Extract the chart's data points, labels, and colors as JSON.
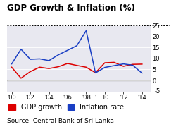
{
  "title": "GDP Growth & Inflation (%)",
  "source": "Source: Central Bank of Sri Lanka",
  "years": [
    2000,
    2001,
    2002,
    2003,
    2004,
    2005,
    2006,
    2007,
    2008,
    2009,
    2010,
    2011,
    2012,
    2013,
    2014
  ],
  "gdp": [
    6.0,
    1.0,
    4.0,
    6.0,
    5.4,
    6.2,
    7.7,
    6.8,
    6.0,
    3.5,
    8.0,
    8.2,
    6.4,
    7.3,
    7.4
  ],
  "inflation": [
    7.5,
    14.2,
    9.6,
    9.8,
    9.0,
    11.6,
    13.7,
    15.8,
    22.6,
    3.4,
    5.9,
    6.7,
    7.5,
    6.9,
    3.3
  ],
  "gdp_color": "#dd0000",
  "inflation_color": "#1a3fc4",
  "ylim": [
    -5,
    25
  ],
  "yticks": [
    0,
    5,
    10,
    15,
    20,
    25
  ],
  "ytick_label_minus5": "-5",
  "bg_color": "#e8e8f0",
  "title_fontsize": 8.5,
  "tick_fontsize": 6.0,
  "legend_fontsize": 7.0,
  "source_fontsize": 6.5,
  "xtick_years": [
    2000,
    2002,
    2004,
    2006,
    2008,
    2009,
    2010,
    2012,
    2014
  ],
  "xtick_labels": [
    "'00",
    "'02",
    "'04",
    "'06",
    "'08",
    "'",
    "10",
    "'12",
    "'14"
  ]
}
